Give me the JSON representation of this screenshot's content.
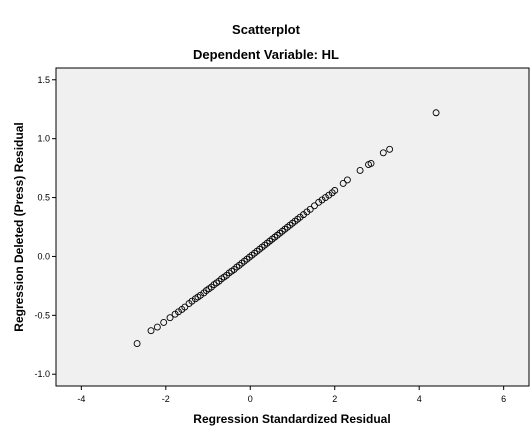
{
  "chart_data": {
    "type": "scatter",
    "title": "Scatterplot",
    "subtitle": "Dependent Variable: HL",
    "xlabel": "Regression Standardized Residual",
    "ylabel": "Regression Deleted (Press) Residual",
    "xlim": [
      -4.6,
      6.6
    ],
    "ylim": [
      -1.1,
      1.6
    ],
    "xticks": [
      -4,
      -2,
      0,
      2,
      4,
      6
    ],
    "yticks": [
      -1.0,
      -0.5,
      0.0,
      0.5,
      1.0,
      1.5
    ],
    "xtick_labels": [
      "-4",
      "-2",
      "0",
      "2",
      "4",
      "6"
    ],
    "ytick_labels": [
      "-1.0",
      "-0.5",
      "0.0",
      "0.5",
      "1.0",
      "1.5"
    ],
    "grid": false,
    "plot_background": "#f0f0f0",
    "marker": "open-circle",
    "series": [
      {
        "points": [
          [
            -2.68,
            -0.74
          ],
          [
            -2.35,
            -0.63
          ],
          [
            -2.2,
            -0.6
          ],
          [
            -2.05,
            -0.56
          ],
          [
            -1.9,
            -0.52
          ],
          [
            -1.78,
            -0.49
          ],
          [
            -1.7,
            -0.47
          ],
          [
            -1.62,
            -0.45
          ],
          [
            -1.55,
            -0.43
          ],
          [
            -1.45,
            -0.4
          ],
          [
            -1.38,
            -0.38
          ],
          [
            -1.3,
            -0.36
          ],
          [
            -1.24,
            -0.345
          ],
          [
            -1.18,
            -0.33
          ],
          [
            -1.1,
            -0.31
          ],
          [
            -1.04,
            -0.29
          ],
          [
            -0.98,
            -0.275
          ],
          [
            -0.92,
            -0.26
          ],
          [
            -0.86,
            -0.24
          ],
          [
            -0.8,
            -0.225
          ],
          [
            -0.74,
            -0.21
          ],
          [
            -0.68,
            -0.19
          ],
          [
            -0.62,
            -0.175
          ],
          [
            -0.56,
            -0.16
          ],
          [
            -0.5,
            -0.14
          ],
          [
            -0.44,
            -0.125
          ],
          [
            -0.38,
            -0.11
          ],
          [
            -0.32,
            -0.09
          ],
          [
            -0.26,
            -0.075
          ],
          [
            -0.2,
            -0.057
          ],
          [
            -0.14,
            -0.04
          ],
          [
            -0.08,
            -0.023
          ],
          [
            -0.02,
            -0.006
          ],
          [
            0.04,
            0.011
          ],
          [
            0.1,
            0.028
          ],
          [
            0.16,
            0.045
          ],
          [
            0.22,
            0.062
          ],
          [
            0.28,
            0.079
          ],
          [
            0.34,
            0.096
          ],
          [
            0.4,
            0.113
          ],
          [
            0.46,
            0.13
          ],
          [
            0.52,
            0.147
          ],
          [
            0.58,
            0.164
          ],
          [
            0.64,
            0.18
          ],
          [
            0.7,
            0.197
          ],
          [
            0.76,
            0.214
          ],
          [
            0.82,
            0.231
          ],
          [
            0.88,
            0.248
          ],
          [
            0.94,
            0.265
          ],
          [
            1.0,
            0.282
          ],
          [
            1.06,
            0.299
          ],
          [
            1.12,
            0.316
          ],
          [
            1.18,
            0.333
          ],
          [
            1.26,
            0.355
          ],
          [
            1.34,
            0.378
          ],
          [
            1.42,
            0.4
          ],
          [
            1.52,
            0.43
          ],
          [
            1.62,
            0.46
          ],
          [
            1.7,
            0.48
          ],
          [
            1.78,
            0.5
          ],
          [
            1.86,
            0.52
          ],
          [
            1.94,
            0.54
          ],
          [
            2.0,
            0.56
          ],
          [
            2.2,
            0.62
          ],
          [
            2.3,
            0.65
          ],
          [
            2.6,
            0.73
          ],
          [
            2.8,
            0.78
          ],
          [
            2.86,
            0.79
          ],
          [
            3.15,
            0.88
          ],
          [
            3.3,
            0.91
          ],
          [
            4.4,
            1.22
          ]
        ]
      }
    ]
  }
}
